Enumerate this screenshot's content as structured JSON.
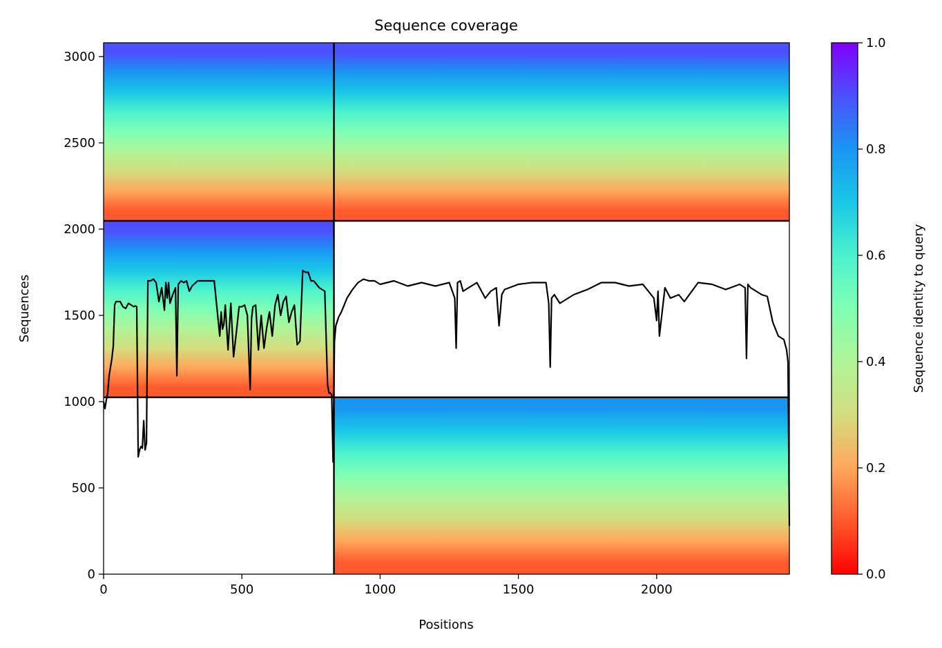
{
  "chart_data": {
    "type": "heatmap",
    "title": "Sequence coverage",
    "xlabel": "Positions",
    "ylabel": "Sequences",
    "xlim": [
      0,
      2480
    ],
    "ylim": [
      0,
      3080
    ],
    "xticks": [
      0,
      500,
      1000,
      1500,
      2000
    ],
    "yticks": [
      0,
      500,
      1000,
      1500,
      2000,
      2500,
      3000
    ],
    "colorbar": {
      "label": "Sequence identity to query",
      "range": [
        0,
        1
      ],
      "ticks": [
        0.0,
        0.2,
        0.4,
        0.6,
        0.8,
        1.0
      ],
      "tick_labels": [
        "0.0",
        "0.2",
        "0.4",
        "0.6",
        "0.8",
        "1.0"
      ],
      "colormap": "rainbow"
    },
    "blocks": [
      {
        "x": [
          0,
          833
        ],
        "y": [
          2048,
          3080
        ],
        "identity_bottom": 0.05,
        "identity_top": 0.95
      },
      {
        "x": [
          833,
          2480
        ],
        "y": [
          2048,
          3080
        ],
        "identity_bottom": 0.05,
        "identity_top": 0.95
      },
      {
        "x": [
          0,
          833
        ],
        "y": [
          1025,
          2048
        ],
        "identity_bottom": 0.05,
        "identity_top": 0.95
      },
      {
        "x": [
          833,
          2480
        ],
        "y": [
          0,
          1025
        ],
        "identity_bottom": 0.05,
        "identity_top": 0.85
      }
    ],
    "block_boundaries": {
      "x": 833,
      "y": [
        1025,
        2048
      ]
    },
    "coverage_line": {
      "name": "coverage",
      "x": [
        0,
        5,
        10,
        15,
        20,
        25,
        30,
        35,
        40,
        45,
        50,
        60,
        70,
        80,
        90,
        100,
        110,
        115,
        120,
        125,
        130,
        135,
        140,
        145,
        150,
        155,
        160,
        170,
        180,
        190,
        200,
        210,
        220,
        225,
        230,
        235,
        240,
        250,
        260,
        265,
        270,
        280,
        290,
        300,
        310,
        320,
        340,
        360,
        380,
        400,
        420,
        425,
        430,
        435,
        440,
        450,
        460,
        470,
        480,
        490,
        500,
        510,
        520,
        530,
        535,
        540,
        550,
        560,
        570,
        580,
        590,
        600,
        610,
        620,
        630,
        640,
        650,
        660,
        670,
        680,
        690,
        700,
        710,
        720,
        730,
        740,
        750,
        760,
        780,
        800,
        810,
        815,
        820,
        825,
        830,
        835,
        840,
        850,
        860,
        870,
        880,
        900,
        920,
        940,
        960,
        980,
        1000,
        1050,
        1100,
        1150,
        1200,
        1250,
        1270,
        1275,
        1280,
        1290,
        1300,
        1350,
        1380,
        1400,
        1420,
        1430,
        1440,
        1450,
        1500,
        1550,
        1580,
        1600,
        1610,
        1615,
        1620,
        1630,
        1650,
        1700,
        1750,
        1800,
        1850,
        1900,
        1950,
        1990,
        2000,
        2005,
        2010,
        2030,
        2050,
        2080,
        2100,
        2150,
        2200,
        2250,
        2300,
        2320,
        2325,
        2330,
        2340,
        2380,
        2400,
        2420,
        2440,
        2450,
        2460,
        2470,
        2475,
        2480
      ],
      "values": [
        1000,
        960,
        1010,
        1050,
        1150,
        1200,
        1250,
        1320,
        1560,
        1580,
        1580,
        1580,
        1550,
        1540,
        1570,
        1560,
        1550,
        1555,
        1550,
        680,
        720,
        740,
        730,
        890,
        720,
        760,
        1700,
        1700,
        1710,
        1690,
        1580,
        1660,
        1530,
        1690,
        1600,
        1690,
        1570,
        1620,
        1660,
        1150,
        1680,
        1700,
        1690,
        1700,
        1640,
        1670,
        1700,
        1700,
        1700,
        1700,
        1380,
        1520,
        1420,
        1450,
        1560,
        1300,
        1570,
        1260,
        1400,
        1550,
        1550,
        1560,
        1500,
        1070,
        1480,
        1550,
        1560,
        1300,
        1500,
        1310,
        1430,
        1520,
        1380,
        1560,
        1620,
        1500,
        1580,
        1610,
        1460,
        1520,
        1560,
        1330,
        1350,
        1760,
        1750,
        1750,
        1700,
        1700,
        1660,
        1640,
        1100,
        1050,
        1050,
        1040,
        650,
        1350,
        1440,
        1490,
        1520,
        1560,
        1600,
        1650,
        1690,
        1710,
        1700,
        1700,
        1680,
        1700,
        1670,
        1690,
        1670,
        1690,
        1600,
        1310,
        1690,
        1700,
        1640,
        1690,
        1600,
        1640,
        1660,
        1440,
        1620,
        1650,
        1680,
        1690,
        1690,
        1690,
        1570,
        1200,
        1600,
        1620,
        1570,
        1620,
        1650,
        1690,
        1690,
        1670,
        1680,
        1600,
        1470,
        1640,
        1380,
        1660,
        1600,
        1620,
        1580,
        1690,
        1680,
        1650,
        1680,
        1660,
        1250,
        1680,
        1660,
        1620,
        1610,
        1460,
        1380,
        1370,
        1360,
        1300,
        1230,
        280
      ]
    }
  }
}
